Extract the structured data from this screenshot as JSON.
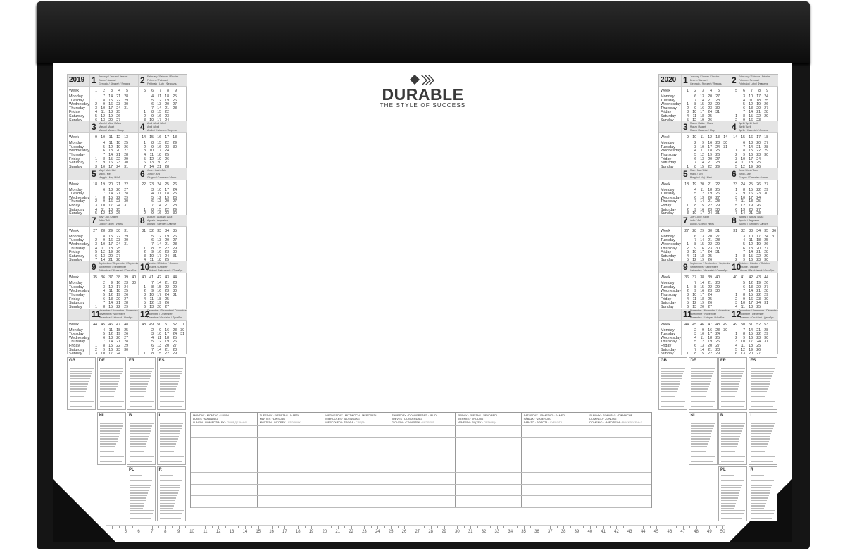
{
  "brand": {
    "name": "DURABLE",
    "tagline": "THE STYLE OF SUCCESS"
  },
  "colors": {
    "mat": "#151515",
    "paper": "#ffffff",
    "header_band": "#e4e4e4"
  },
  "calendars": [
    {
      "year": "2019",
      "week_label": "Week",
      "weekdays": [
        "Monday",
        "Tuesday",
        "Wednesday",
        "Thursday",
        "Friday",
        "Saturday",
        "Sunday"
      ]
    },
    {
      "year": "2020",
      "week_label": "Week",
      "weekdays": [
        "Monday",
        "Tuesday",
        "Wednesday",
        "Thursday",
        "Friday",
        "Saturday",
        "Sunday"
      ]
    }
  ],
  "months": [
    {
      "num": "1",
      "names": [
        "January / Januar / Janvier",
        "Enero / Januari",
        "Gennaio / Styczeń / Январь"
      ]
    },
    {
      "num": "2",
      "names": [
        "February / Februar / Février",
        "Febrero / Februari",
        "Febbraio / Luty / Февраль"
      ]
    },
    {
      "num": "3",
      "names": [
        "March / März / Mars",
        "Marzo / Maart",
        "Marzo / Marzec / Март"
      ]
    },
    {
      "num": "4",
      "names": [
        "April / April / Avril",
        "Abril / April",
        "Aprile / Kwiecień / Апрель"
      ]
    },
    {
      "num": "5",
      "names": [
        "May / Mai / Mai",
        "Mayo / Mei",
        "Maggio / Maj / Май"
      ]
    },
    {
      "num": "6",
      "names": [
        "June / Juni / Juin",
        "Junio / Juni",
        "Giugno / Czerwiec / Июнь"
      ]
    },
    {
      "num": "7",
      "names": [
        "July / Juli / Juillet",
        "Julio / Juli",
        "Luglio / Lipiec / Июль"
      ]
    },
    {
      "num": "8",
      "names": [
        "August / August / Août",
        "Agosto / Augustus",
        "Agosto / Sierpień / Август"
      ]
    },
    {
      "num": "9",
      "names": [
        "September / September / Septembre",
        "Septiembre / September",
        "Settembre / Wrzesień / Сентябрь"
      ]
    },
    {
      "num": "10",
      "names": [
        "October / Oktober / Octobre",
        "Octubre / Oktober",
        "Ottobre / Październik / Октябрь"
      ]
    },
    {
      "num": "11",
      "names": [
        "November / November / Novembre",
        "Noviembre / November",
        "Novembre / Listopad / Ноябрь"
      ]
    },
    {
      "num": "12",
      "names": [
        "December / Dezember / Décembre",
        "Diciembre / December",
        "Dicembre / Grudzień / Декабрь"
      ]
    }
  ],
  "holiday_countries": [
    "GB",
    "DE",
    "FR",
    "ES",
    "NL",
    "B",
    "I",
    "PL",
    "R"
  ],
  "planner": {
    "days": [
      [
        "MONDAY · MONTAG · LUNDI",
        "LUNES · MAANDAG",
        "LUNEDI · PONIEDZIAŁEK ·",
        "ПОНЕДЕЛЬНИК"
      ],
      [
        "TUESDAY · DIENSTAG · MARDI",
        "MARTES · DINSDAG",
        "MARTEDI · WTOREK ·",
        "ВТОРНИК"
      ],
      [
        "WEDNESDAY · MITTWOCH · MERCREDI",
        "MIÉRCOLES · WOENSDAG",
        "MERCOLEDI · ŚRODA ·",
        "СРЕДА"
      ],
      [
        "THURSDAY · DONNERSTAG · JEUDI",
        "JUEVES · DONDERDAG",
        "GIOVEDI · CZWARTEK ·",
        "ЧЕТВЕРГ"
      ],
      [
        "FRIDAY · FREITAG · VENDREDI",
        "VIERNES · VRIJDAG",
        "VENERDI · PIĄTEK ·",
        "ПЯТНИЦА"
      ],
      [
        "SATURDAY · SAMSTAG · SAMEDI",
        "SÁBADO · ZATERDAG",
        "SABATO · SOBOTA ·",
        "СУББОТА"
      ],
      [
        "SUNDAY · SONNTAG · DIMANCHE",
        "DOMINGO · ZONDAG",
        "DOMENICA · NIEDZIELA ·",
        "ВОСКРЕСЕНЬЕ"
      ]
    ]
  },
  "ruler": {
    "unit": "cm",
    "start": 4,
    "end": 50
  }
}
